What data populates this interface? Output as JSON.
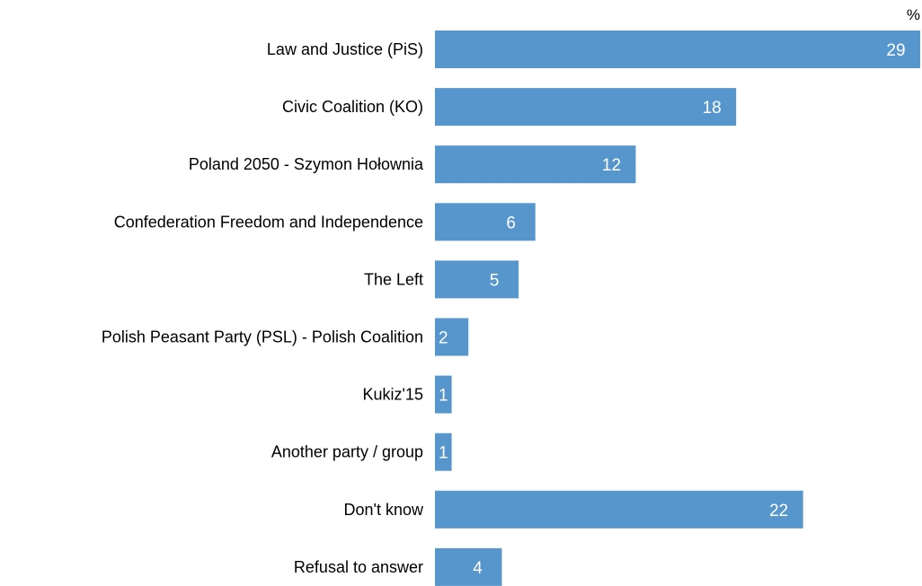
{
  "chart_data": {
    "type": "bar",
    "orientation": "horizontal",
    "unit": "%",
    "categories": [
      "Law and Justice (PiS)",
      "Civic Coalition (KO)",
      "Poland 2050 - Szymon Hołownia",
      "Confederation Freedom and Independence",
      "The Left",
      "Polish Peasant Party (PSL) - Polish Coalition",
      "Kukiz'15",
      "Another party / group",
      "Don't know",
      "Refusal to answer"
    ],
    "values": [
      29,
      18,
      12,
      6,
      5,
      2,
      1,
      1,
      22,
      4
    ],
    "xlim": [
      0,
      29
    ],
    "bar_color": "#5796cd",
    "grid": false,
    "legend": "none"
  }
}
